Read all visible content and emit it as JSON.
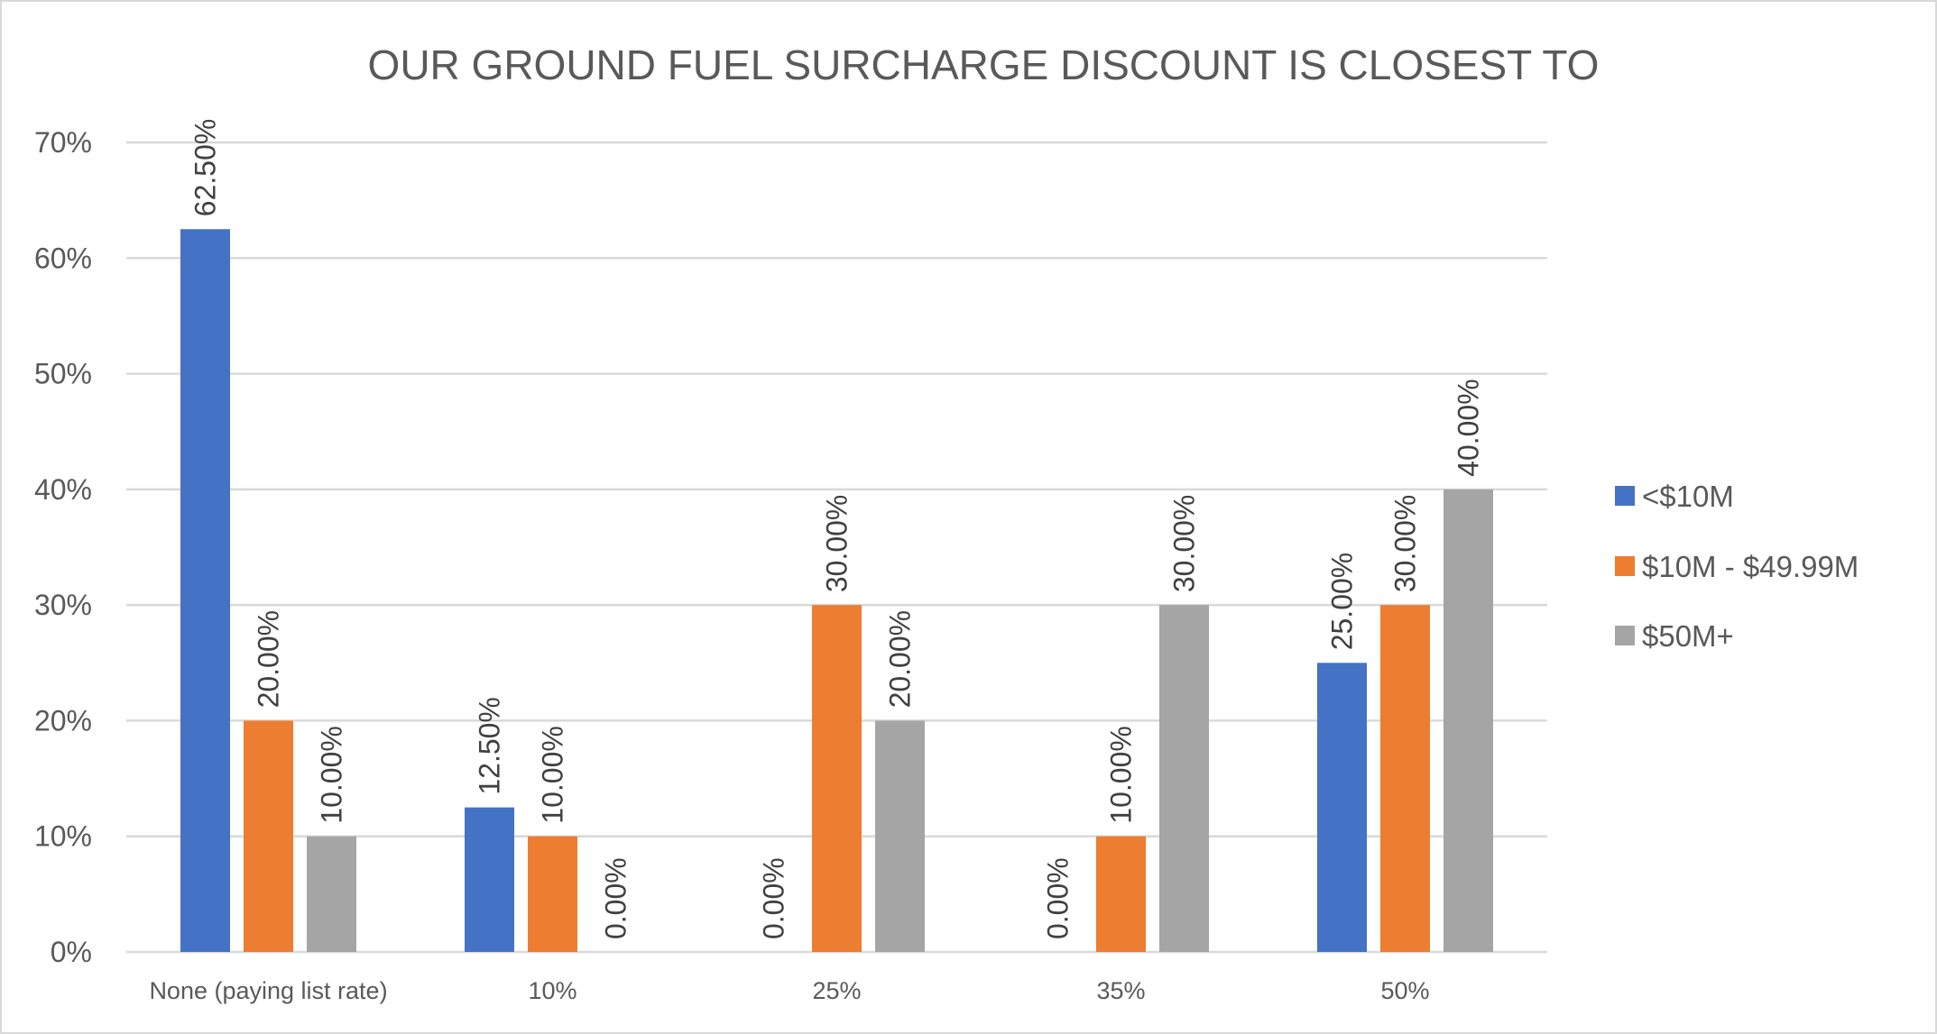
{
  "chart_data": {
    "type": "bar",
    "title": "OUR GROUND FUEL SURCHARGE DISCOUNT IS CLOSEST TO",
    "xlabel": "",
    "ylabel": "",
    "categories": [
      "None (paying list rate)",
      "10%",
      "25%",
      "35%",
      "50%"
    ],
    "series": [
      {
        "name": "<$10M",
        "color": "#4472c4",
        "values": [
          62.5,
          12.5,
          0,
          0,
          25
        ],
        "labels": [
          "62.50%",
          "12.50%",
          "0.00%",
          "0.00%",
          "25.00%"
        ]
      },
      {
        "name": "$10M - $49.99M",
        "color": "#ed7d31",
        "values": [
          20,
          10,
          30,
          10,
          30
        ],
        "labels": [
          "20.00%",
          "10.00%",
          "30.00%",
          "10.00%",
          "30.00%"
        ]
      },
      {
        "name": "$50M+",
        "color": "#a5a5a5",
        "values": [
          10,
          0,
          20,
          30,
          40
        ],
        "labels": [
          "10.00%",
          "0.00%",
          "20.00%",
          "30.00%",
          "40.00%"
        ]
      }
    ],
    "ylim": [
      0,
      70
    ],
    "yticks": [
      0,
      10,
      20,
      30,
      40,
      50,
      60,
      70
    ],
    "ytick_labels": [
      "0%",
      "10%",
      "20%",
      "30%",
      "40%",
      "50%",
      "60%",
      "70%"
    ],
    "grid": true,
    "legend": "right"
  }
}
